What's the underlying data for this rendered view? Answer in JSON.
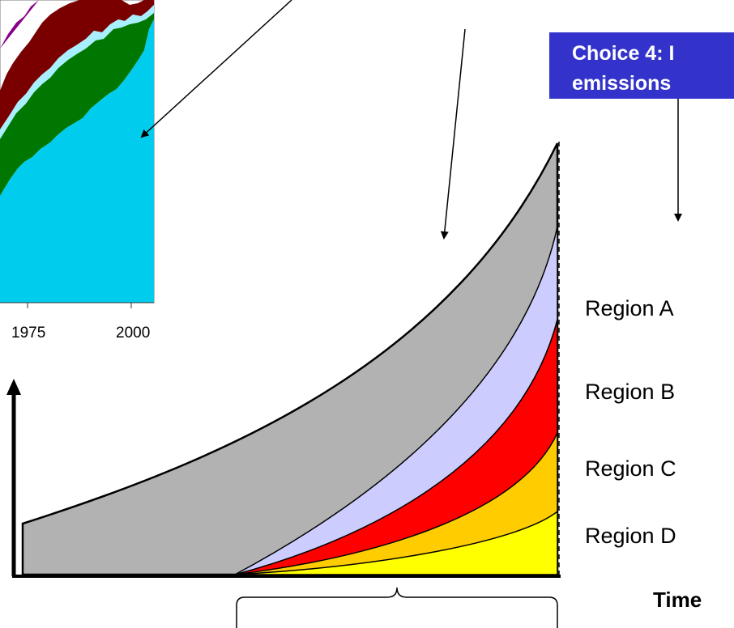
{
  "choice_box": {
    "line1": "Choice 4: I",
    "line2": "emissions"
  },
  "inset_chart": {
    "x_ticks": [
      "1975",
      "2000"
    ]
  },
  "regions": [
    "Region A",
    "Region B",
    "Region C",
    "Region D"
  ],
  "time_label": "Time",
  "colors": {
    "choice_box": "#3333cc",
    "inset_light_blue": "#00ccee",
    "inset_green": "#007700",
    "inset_dark_red": "#7a0000",
    "inset_purple": "#880088",
    "future_emissions": "#b2b2b2",
    "region_a": "#ccccff",
    "region_b": "#ff0000",
    "region_c": "#ffcc00",
    "region_d": "#ffff00"
  }
}
